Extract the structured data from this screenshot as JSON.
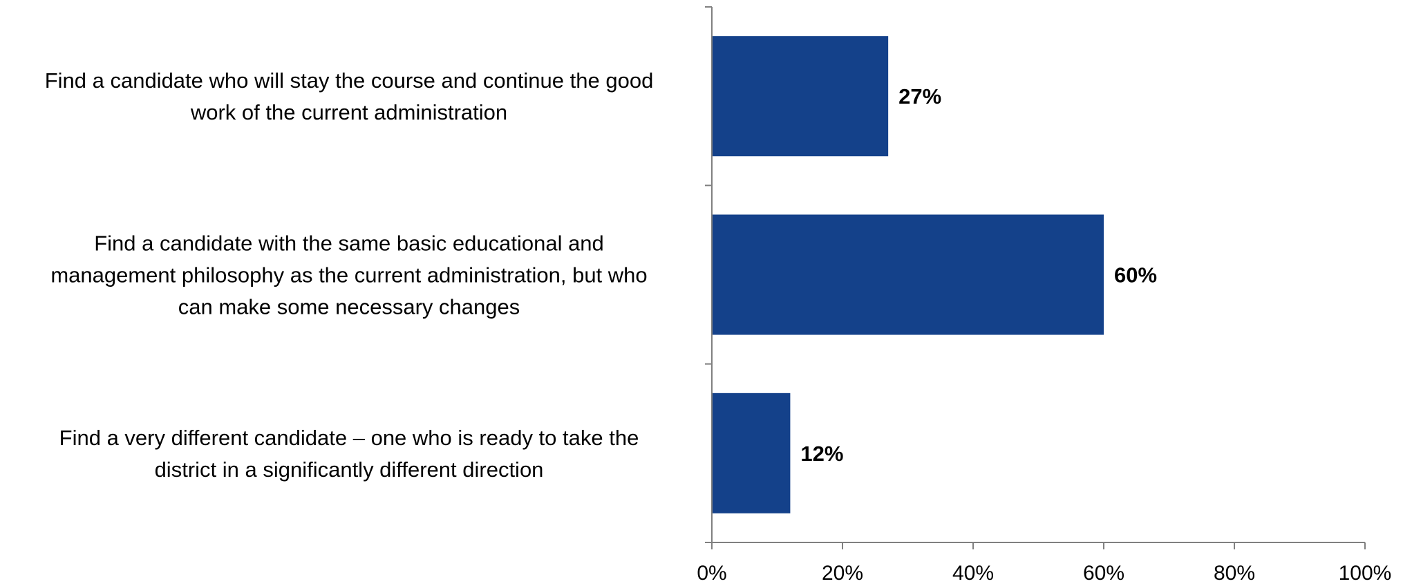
{
  "chart_data": {
    "type": "bar",
    "orientation": "horizontal",
    "categories": [
      [
        "Find a candidate who will stay the course and continue the good",
        "work of the current administration"
      ],
      [
        "Find a candidate with the same basic educational and",
        "management philosophy as the current administration, but who",
        "can make some necessary changes"
      ],
      [
        "Find a very different candidate – one who is ready to take the",
        "district in a significantly different direction"
      ]
    ],
    "values": [
      27,
      60,
      12
    ],
    "data_labels": [
      "27%",
      "60%",
      "12%"
    ],
    "x_ticks": [
      "0%",
      "20%",
      "40%",
      "60%",
      "80%",
      "100%"
    ],
    "xlim": [
      0,
      100
    ],
    "title": "",
    "xlabel": "",
    "ylabel": "",
    "grid": false,
    "legend": "none",
    "bar_color": "#14418A"
  }
}
